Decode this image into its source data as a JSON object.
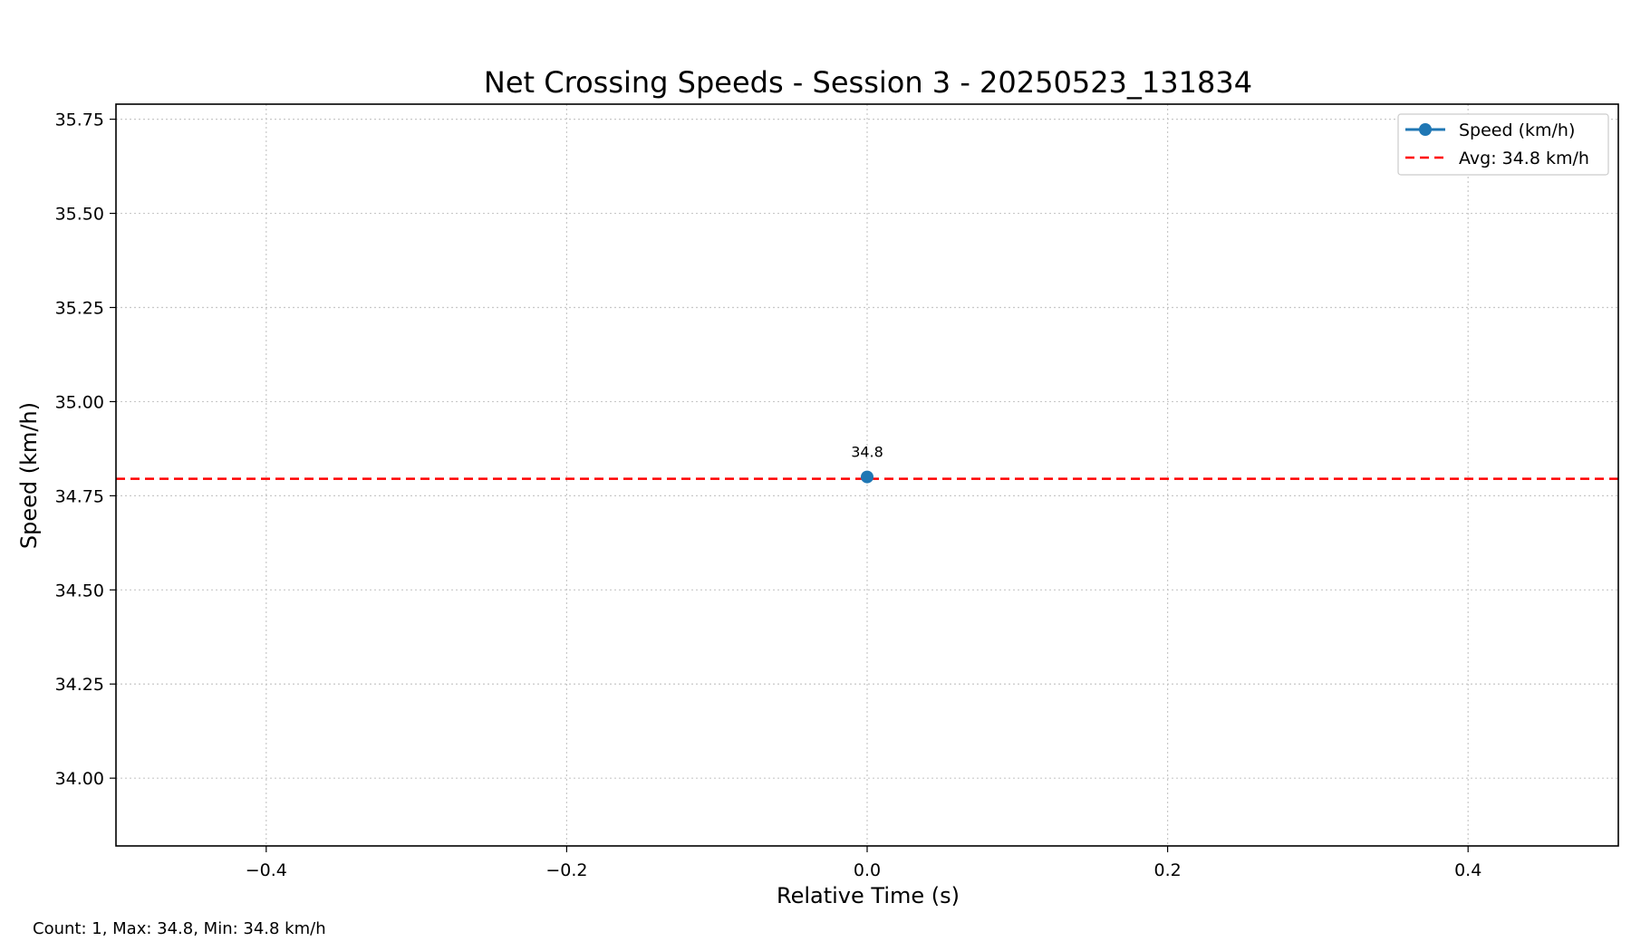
{
  "chart_data": {
    "type": "line",
    "title": "Net Crossing Speeds - Session 3 - 20250523_131834",
    "xlabel": "Relative Time (s)",
    "ylabel": "Speed (km/h)",
    "xlim": [
      -0.5,
      0.5
    ],
    "ylim": [
      33.82,
      35.79
    ],
    "x_ticks": [
      -0.4,
      -0.2,
      0.0,
      0.2,
      0.4
    ],
    "x_tick_labels": [
      "−0.4",
      "−0.2",
      "0.0",
      "0.2",
      "0.4"
    ],
    "y_ticks": [
      34.0,
      34.25,
      34.5,
      34.75,
      35.0,
      35.25,
      35.5,
      35.75
    ],
    "y_tick_labels": [
      "34.00",
      "34.25",
      "34.50",
      "34.75",
      "35.00",
      "35.25",
      "35.50",
      "35.75"
    ],
    "grid": true,
    "legend_position": "top-right",
    "series": [
      {
        "name": "Speed (km/h)",
        "color": "#1f77b4",
        "marker": "circle",
        "points": [
          {
            "x": 0.0,
            "y": 34.8,
            "label": "34.8"
          }
        ]
      }
    ],
    "reference_lines": [
      {
        "name": "Avg: 34.8 km/h",
        "orientation": "horizontal",
        "y": 34.795,
        "color": "#ff0000",
        "style": "dashed"
      }
    ]
  },
  "footer": {
    "stats_text": "Count: 1, Max: 34.8, Min: 34.8 km/h"
  }
}
